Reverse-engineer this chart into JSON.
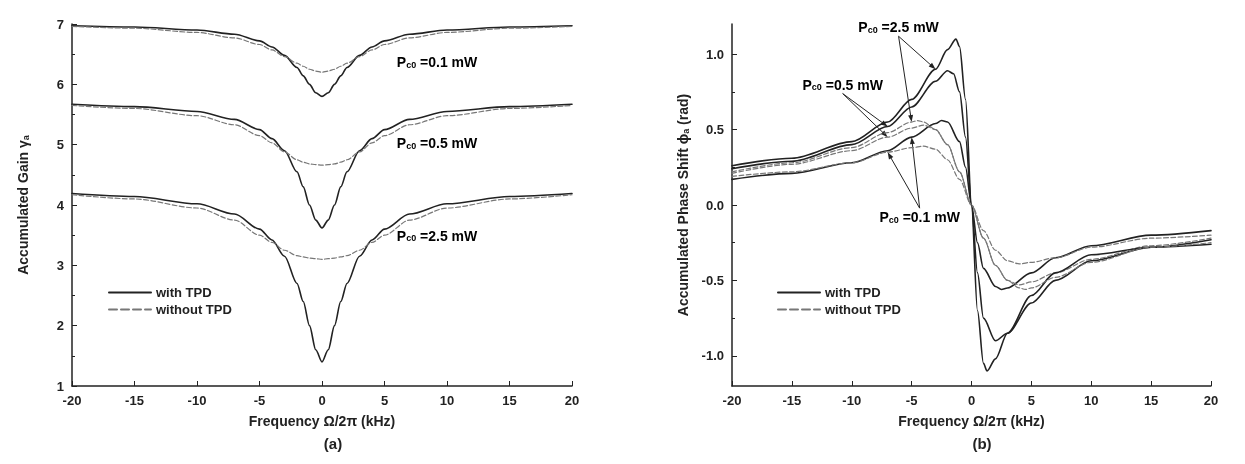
{
  "chart_data": [
    {
      "type": "line",
      "title": "(a)",
      "xlabel": "Frequency Ω/2π (kHz)",
      "ylabel": "Accumulated Gain γ$_{a}$",
      "xlim": [
        -20,
        20
      ],
      "xticks": [
        -20,
        -15,
        -10,
        -5,
        0,
        5,
        10,
        15,
        20
      ],
      "ylim": [
        1,
        7
      ],
      "yticks": [
        1,
        2,
        3,
        4,
        5,
        6,
        7
      ],
      "grid": false,
      "legend": "bottom left",
      "annotations": [
        "P$_{c0}$ =0.1 mW",
        "P$_{c0}$ =0.5 mW",
        "P$_{c0}$ =2.5 mW"
      ],
      "series": [
        {
          "name": "with TPD",
          "color": "#222222",
          "line_style": "solid",
          "x": [
            -20,
            -15,
            -10,
            -7,
            -5,
            -4,
            -3,
            -2,
            -1.5,
            -1,
            -0.5,
            0,
            0.5,
            1,
            1.5,
            2,
            3,
            4,
            5,
            7,
            10,
            15,
            20
          ],
          "values": [
            6.97,
            6.95,
            6.9,
            6.83,
            6.72,
            6.62,
            6.48,
            6.28,
            6.14,
            6.0,
            5.86,
            5.8,
            5.86,
            6.0,
            6.14,
            6.28,
            6.48,
            6.62,
            6.72,
            6.83,
            6.9,
            6.95,
            6.97
          ]
        },
        {
          "name": "without TPD",
          "color": "#777777",
          "line_style": "dashed",
          "x": [
            -20,
            -15,
            -10,
            -7,
            -5,
            -4,
            -3,
            -2,
            -1.5,
            -1,
            -0.5,
            0,
            0.5,
            1,
            1.5,
            2,
            3,
            4,
            5,
            7,
            10,
            15,
            20
          ],
          "values": [
            6.96,
            6.93,
            6.86,
            6.77,
            6.66,
            6.57,
            6.46,
            6.35,
            6.3,
            6.25,
            6.22,
            6.2,
            6.22,
            6.25,
            6.3,
            6.35,
            6.46,
            6.57,
            6.66,
            6.77,
            6.86,
            6.93,
            6.96
          ]
        },
        {
          "color": "#222222",
          "line_style": "solid",
          "x": [
            -20,
            -15,
            -10,
            -7,
            -5,
            -4,
            -3,
            -2,
            -1.5,
            -1,
            -0.5,
            0,
            0.5,
            1,
            1.5,
            2,
            3,
            4,
            5,
            7,
            10,
            15,
            20
          ],
          "values": [
            5.67,
            5.63,
            5.55,
            5.42,
            5.25,
            5.1,
            4.9,
            4.55,
            4.3,
            4.0,
            3.75,
            3.62,
            3.75,
            4.0,
            4.3,
            4.55,
            4.9,
            5.1,
            5.25,
            5.42,
            5.55,
            5.63,
            5.67
          ]
        },
        {
          "color": "#777777",
          "line_style": "dashed",
          "x": [
            -20,
            -15,
            -10,
            -7,
            -5,
            -4,
            -3,
            -2,
            -1.5,
            -1,
            -0.5,
            0,
            0.5,
            1,
            1.5,
            2,
            3,
            4,
            5,
            7,
            10,
            15,
            20
          ],
          "values": [
            5.65,
            5.6,
            5.48,
            5.33,
            5.15,
            5.03,
            4.88,
            4.75,
            4.71,
            4.68,
            4.67,
            4.66,
            4.67,
            4.68,
            4.71,
            4.75,
            4.88,
            5.03,
            5.15,
            5.33,
            5.48,
            5.6,
            5.65
          ]
        },
        {
          "color": "#222222",
          "line_style": "solid",
          "x": [
            -20,
            -15,
            -10,
            -7,
            -5,
            -4,
            -3,
            -2,
            -1.5,
            -1,
            -0.5,
            0,
            0.5,
            1,
            1.5,
            2,
            3,
            4,
            5,
            7,
            10,
            15,
            20
          ],
          "values": [
            4.19,
            4.14,
            4.02,
            3.85,
            3.6,
            3.42,
            3.15,
            2.7,
            2.4,
            2.0,
            1.6,
            1.4,
            1.6,
            2.0,
            2.4,
            2.7,
            3.15,
            3.42,
            3.6,
            3.85,
            4.02,
            4.14,
            4.19
          ]
        },
        {
          "color": "#777777",
          "line_style": "dashed",
          "x": [
            -20,
            -15,
            -10,
            -7,
            -5,
            -4,
            -3,
            -2,
            -1.5,
            -1,
            -0.5,
            0,
            0.5,
            1,
            1.5,
            2,
            3,
            4,
            5,
            7,
            10,
            15,
            20
          ],
          "values": [
            4.17,
            4.1,
            3.95,
            3.75,
            3.5,
            3.38,
            3.25,
            3.16,
            3.14,
            3.12,
            3.11,
            3.1,
            3.11,
            3.12,
            3.14,
            3.16,
            3.25,
            3.38,
            3.5,
            3.75,
            3.95,
            4.1,
            4.17
          ]
        }
      ]
    },
    {
      "type": "line",
      "title": "(b)",
      "xlabel": "Frequency Ω/2π (kHz)",
      "ylabel": "Accumulated Phase Shift ϕ$_{a}$ (rad)",
      "xlim": [
        -20,
        20
      ],
      "xticks": [
        -20,
        -15,
        -10,
        -5,
        0,
        5,
        10,
        15,
        20
      ],
      "ylim": [
        -1.2,
        1.2
      ],
      "yticks": [
        {
          "value": -1,
          "label": "-1.0"
        },
        -0.5,
        {
          "value": 0,
          "label": "0.0"
        },
        0.5,
        {
          "value": 1,
          "label": "1.0"
        }
      ],
      "grid": false,
      "legend": "bottom left",
      "annotations": [
        {
          "text": "P$_{c0}$ =2.5 mW",
          "x": -3,
          "y": 0.9
        },
        {
          "text": "P$_{c0}$ =0.5 mW",
          "x": -7,
          "y": 0.52
        },
        {
          "text": "P$_{c0}$ =0.1 mW",
          "x": -5,
          "y": 0.45
        }
      ],
      "series": [
        {
          "name": "with TPD",
          "color": "#222222",
          "line_style": "solid",
          "x": [
            -20,
            -15,
            -10,
            -7,
            -5,
            -3,
            -2.5,
            -2,
            -1,
            -0.5,
            0,
            0.5,
            1,
            2,
            2.5,
            3,
            5,
            7,
            10,
            15,
            20
          ],
          "values": [
            0.17,
            0.21,
            0.28,
            0.36,
            0.45,
            0.54,
            0.56,
            0.55,
            0.42,
            0.25,
            0,
            -0.25,
            -0.42,
            -0.54,
            -0.56,
            -0.55,
            -0.45,
            -0.35,
            -0.27,
            -0.2,
            -0.17
          ]
        },
        {
          "name": "without TPD",
          "color": "#777777",
          "line_style": "dashed",
          "x": [
            -20,
            -15,
            -10,
            -7,
            -5,
            -4,
            -3,
            -2,
            -1,
            0,
            1,
            2,
            3,
            4,
            5,
            7,
            10,
            15,
            20
          ],
          "values": [
            0.19,
            0.22,
            0.28,
            0.35,
            0.38,
            0.39,
            0.37,
            0.3,
            0.17,
            0,
            -0.17,
            -0.3,
            -0.37,
            -0.39,
            -0.38,
            -0.35,
            -0.28,
            -0.22,
            -0.2
          ]
        },
        {
          "color": "#222222",
          "line_style": "solid",
          "x": [
            -20,
            -15,
            -10,
            -7,
            -5,
            -3,
            -2,
            -1.5,
            -1,
            -0.5,
            0,
            0.5,
            1,
            2,
            3,
            5,
            7,
            10,
            15,
            20
          ],
          "values": [
            0.24,
            0.29,
            0.4,
            0.52,
            0.65,
            0.82,
            0.89,
            0.87,
            0.75,
            0.45,
            0,
            -0.45,
            -0.75,
            -0.9,
            -0.85,
            -0.65,
            -0.5,
            -0.37,
            -0.28,
            -0.23
          ]
        },
        {
          "color": "#777777",
          "line_style": "dashed",
          "x": [
            -20,
            -15,
            -10,
            -7,
            -5,
            -4,
            -3,
            -2,
            -1,
            0,
            1,
            2,
            3,
            4,
            5,
            7,
            10,
            15,
            20
          ],
          "values": [
            0.21,
            0.27,
            0.36,
            0.45,
            0.51,
            0.53,
            0.5,
            0.4,
            0.22,
            0,
            -0.22,
            -0.4,
            -0.5,
            -0.53,
            -0.51,
            -0.45,
            -0.36,
            -0.27,
            -0.22
          ]
        },
        {
          "color": "#222222",
          "line_style": "solid",
          "x": [
            -20,
            -15,
            -10,
            -7,
            -5,
            -3,
            -2,
            -1.3,
            -1,
            -0.5,
            0,
            0.5,
            1,
            1.3,
            2,
            3,
            5,
            7,
            10,
            15,
            20
          ],
          "values": [
            0.26,
            0.31,
            0.42,
            0.55,
            0.7,
            0.9,
            1.03,
            1.1,
            1.05,
            0.7,
            0,
            -0.7,
            -1.05,
            -1.1,
            -1.02,
            -0.85,
            -0.6,
            -0.45,
            -0.33,
            -0.28,
            -0.26
          ]
        },
        {
          "color": "#777777",
          "line_style": "dashed",
          "x": [
            -20,
            -15,
            -10,
            -7,
            -5,
            -4.5,
            -4,
            -3,
            -2,
            -1,
            0,
            1,
            2,
            3,
            4,
            4.5,
            5,
            7,
            10,
            15,
            20
          ],
          "values": [
            0.22,
            0.28,
            0.38,
            0.48,
            0.55,
            0.56,
            0.55,
            0.5,
            0.4,
            0.22,
            0,
            -0.22,
            -0.4,
            -0.5,
            -0.55,
            -0.56,
            -0.55,
            -0.48,
            -0.38,
            -0.28,
            -0.25
          ]
        }
      ]
    }
  ]
}
